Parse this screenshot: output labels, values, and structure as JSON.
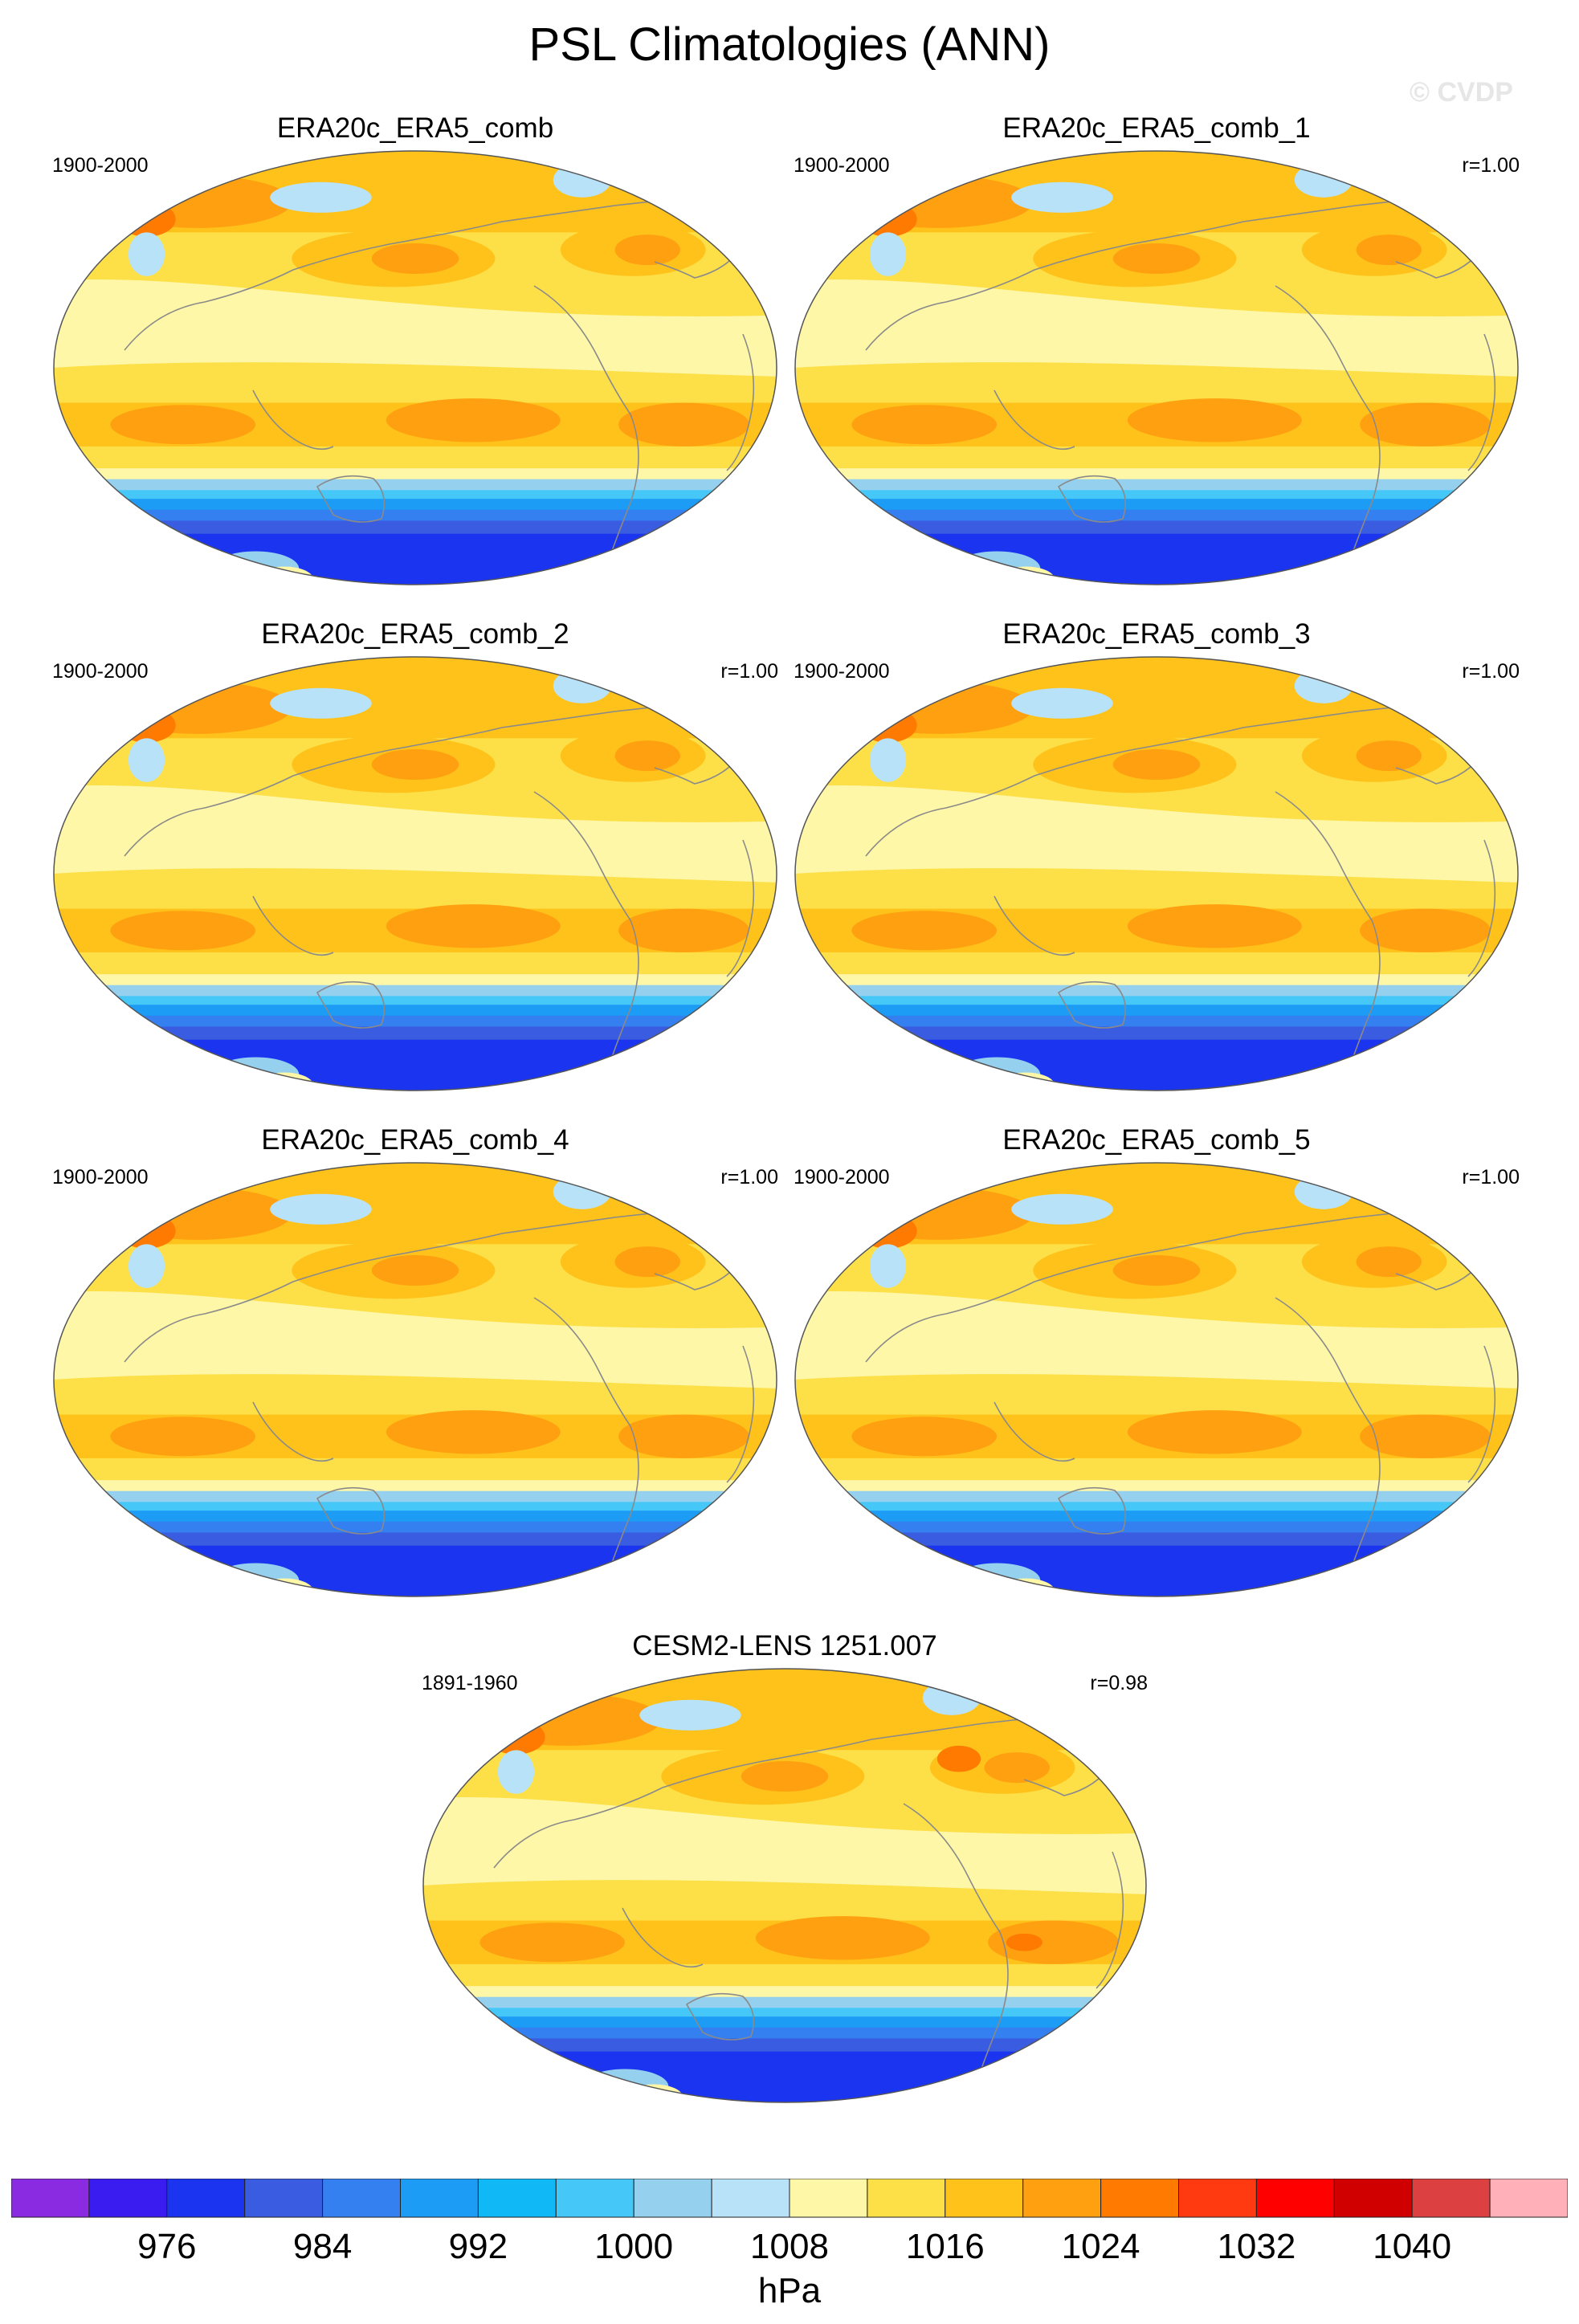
{
  "title": "PSL Climatologies (ANN)",
  "watermark": "© CVDP",
  "panels": [
    {
      "title": "ERA20c_ERA5_comb",
      "period": "1900-2000",
      "r": ""
    },
    {
      "title": "ERA20c_ERA5_comb_1",
      "period": "1900-2000",
      "r": "r=1.00"
    },
    {
      "title": "ERA20c_ERA5_comb_2",
      "period": "1900-2000",
      "r": "r=1.00"
    },
    {
      "title": "ERA20c_ERA5_comb_3",
      "period": "1900-2000",
      "r": "r=1.00"
    },
    {
      "title": "ERA20c_ERA5_comb_4",
      "period": "1900-2000",
      "r": "r=1.00"
    },
    {
      "title": "ERA20c_ERA5_comb_5",
      "period": "1900-2000",
      "r": "r=1.00"
    },
    {
      "title": "CESM2-LENS 1251.007",
      "period": "1891-1960",
      "r": "r=0.98"
    }
  ],
  "chart_data": {
    "type": "heatmap",
    "title": "PSL Climatologies (ANN)",
    "units": "hPa",
    "colorbar": {
      "levels": [
        972,
        976,
        980,
        984,
        988,
        992,
        996,
        1000,
        1004,
        1008,
        1012,
        1016,
        1020,
        1024,
        1028,
        1032,
        1036,
        1040,
        1044
      ],
      "tick_labels": [
        "976",
        "984",
        "992",
        "1000",
        "1008",
        "1016",
        "1024",
        "1032",
        "1040"
      ],
      "colors": [
        "#8a2be2",
        "#3a1cf0",
        "#1a34f0",
        "#3a5ce0",
        "#3580f0",
        "#1c9cf5",
        "#10b8f5",
        "#45c8f8",
        "#95d0ee",
        "#b8e2f8",
        "#fff7a8",
        "#fde048",
        "#ffc21a",
        "#ffa010",
        "#ff7a00",
        "#ff3a10",
        "#ff0000",
        "#d00000",
        "#dd4040",
        "#ffb0b8"
      ]
    },
    "map_zones": {
      "colors": {
        "sub1008": "#b8e2f8",
        "c1012": "#fff7a8",
        "c1016": "#fde048",
        "c1020": "#ffc21a",
        "c1024": "#ffa010",
        "c1028": "#ff7a00",
        "c1000": "#95d0ee",
        "c996": "#45c8f8",
        "c992": "#1c9cf5",
        "c988": "#3580f0",
        "c984": "#3a5ce0",
        "c980": "#1a34f0",
        "land": "#8a8a8a"
      }
    }
  }
}
